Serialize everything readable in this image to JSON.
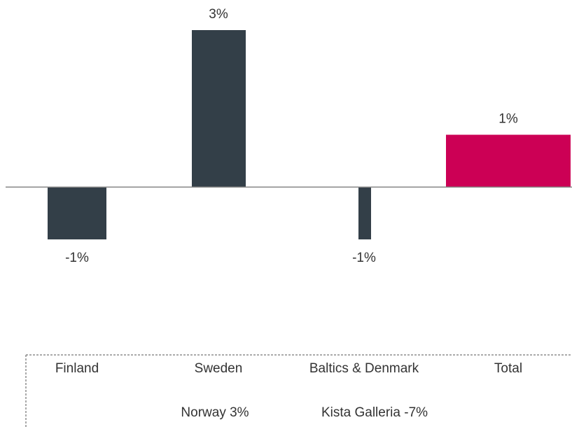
{
  "chart_data": {
    "type": "bar",
    "categories": [
      "Finland",
      "Sweden",
      "Baltics & Denmark",
      "Total"
    ],
    "values": [
      -1,
      3,
      -1,
      1
    ],
    "value_labels": [
      "-1%",
      "3%",
      "-1%",
      "1%"
    ],
    "colors": [
      "#333f48",
      "#333f48",
      "#333f48",
      "#cc0055"
    ],
    "annotations": [
      "Norway 3%",
      "Kista Galleria -7%"
    ]
  }
}
